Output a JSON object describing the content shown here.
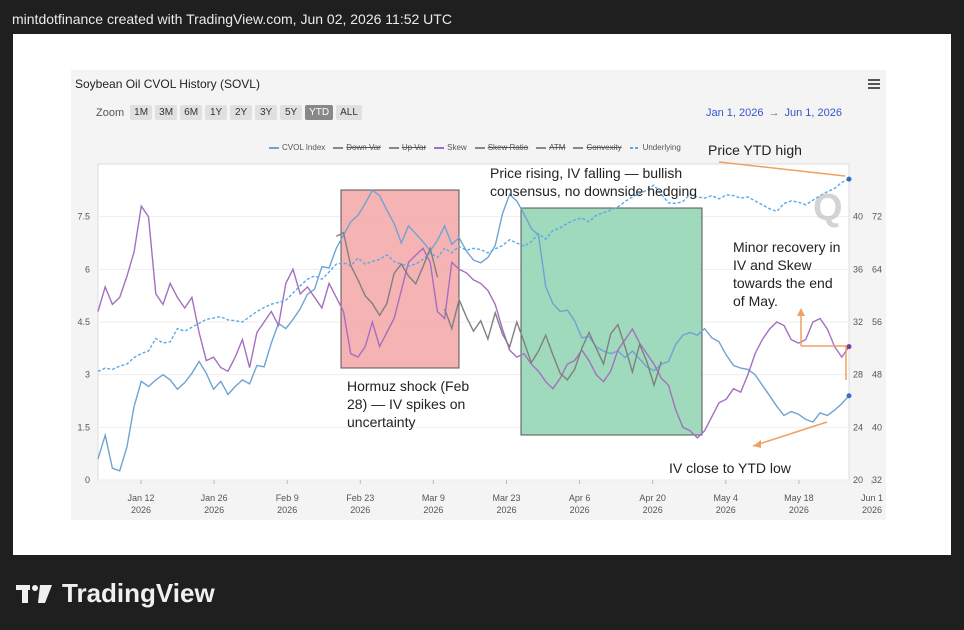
{
  "caption": "mintdotfinance created with TradingView.com, Jun 02, 2026 11:52 UTC",
  "logo_text": "TradingView",
  "chart_data": {
    "type": "line",
    "title": "Soybean Oil CVOL History (SOVL)",
    "zoom_label": "Zoom",
    "zoom_buttons": [
      "1M",
      "3M",
      "6M",
      "1Y",
      "2Y",
      "3Y",
      "5Y",
      "YTD",
      "ALL"
    ],
    "zoom_active": "YTD",
    "date_range": {
      "from": "Jan 1, 2026",
      "arrow": "→",
      "to": "Jun 1, 2026"
    },
    "legend": [
      {
        "label": "CVOL Index",
        "color": "#6fa3d4",
        "style": "solid"
      },
      {
        "label": "Down Var",
        "color": "#888888",
        "style": "strike"
      },
      {
        "label": "Up Var",
        "color": "#888888",
        "style": "strike"
      },
      {
        "label": "Skew",
        "color": "#a56fbf",
        "style": "solid"
      },
      {
        "label": "Skew Ratio",
        "color": "#888888",
        "style": "strike"
      },
      {
        "label": "ATM",
        "color": "#888888",
        "style": "strike"
      },
      {
        "label": "Convexity",
        "color": "#888888",
        "style": "strike"
      },
      {
        "label": "Underlying",
        "color": "#5aa9e6",
        "style": "dashed"
      }
    ],
    "x_ticks": [
      {
        "day": "Jan 12",
        "year": "2026"
      },
      {
        "day": "Jan 26",
        "year": "2026"
      },
      {
        "day": "Feb 9",
        "year": "2026"
      },
      {
        "day": "Feb 23",
        "year": "2026"
      },
      {
        "day": "Mar 9",
        "year": "2026"
      },
      {
        "day": "Mar 23",
        "year": "2026"
      },
      {
        "day": "Apr 6",
        "year": "2026"
      },
      {
        "day": "Apr 20",
        "year": "2026"
      },
      {
        "day": "May 4",
        "year": "2026"
      },
      {
        "day": "May 18",
        "year": "2026"
      },
      {
        "day": "Jun 1",
        "year": "2026"
      }
    ],
    "y_left_ticks": [
      "0",
      "1.5",
      "3",
      "4.5",
      "6",
      "7.5"
    ],
    "y_right1_ticks": [
      "20",
      "24",
      "28",
      "32",
      "36",
      "40"
    ],
    "y_right2_ticks": [
      "32",
      "40",
      "48",
      "56",
      "64",
      "72"
    ],
    "ylim_left": [
      0,
      9
    ],
    "ylim_cvol": [
      20,
      44
    ],
    "ylim_underlying": [
      32,
      80
    ],
    "series": [
      {
        "name": "CVOL Index",
        "color": "#6fa3d4",
        "axis": "cvol",
        "values": [
          21.6,
          23.4,
          20.9,
          20.7,
          22.5,
          25.6,
          27.5,
          27.1,
          27.6,
          28.0,
          27.6,
          26.9,
          27.4,
          28.1,
          29.0,
          28.1,
          26.9,
          27.5,
          26.5,
          27.1,
          27.6,
          27.3,
          28.7,
          28.6,
          30.4,
          31.9,
          31.5,
          32.2,
          33.0,
          34.1,
          34.5,
          36.2,
          36.1,
          37.6,
          38.6,
          39.6,
          40.1,
          41.0,
          42.0,
          41.6,
          40.5,
          39.5,
          38.0,
          39.3,
          38.7,
          38.1,
          37.4,
          38.2,
          39.3,
          37.9,
          38.4,
          37.4,
          36.7,
          36.5,
          36.9,
          37.8,
          40.2,
          41.7,
          41.2,
          40.2,
          39.1,
          38.6,
          34.7,
          33.4,
          32.8,
          32.9,
          32.1,
          30.8,
          30.9,
          30.1,
          29.8,
          29.6,
          29.8,
          29.3,
          29.8,
          29.2,
          28.6,
          28.3,
          28.8,
          29.0,
          30.3,
          31.0,
          31.2,
          31.0,
          31.5,
          30.8,
          30.5,
          29.5,
          28.7,
          28.5,
          28.4,
          28.0,
          27.2,
          26.4,
          25.6,
          24.9,
          25.2,
          25.0,
          24.6,
          24.4,
          25.1,
          24.9,
          25.3,
          25.8,
          26.4
        ]
      },
      {
        "name": "Skew",
        "color": "#a56fbf",
        "axis": "left",
        "values": [
          4.8,
          5.5,
          5.0,
          5.2,
          5.8,
          6.5,
          7.8,
          7.5,
          5.3,
          5.0,
          5.6,
          5.2,
          4.9,
          5.2,
          4.2,
          3.4,
          3.5,
          3.2,
          3.1,
          3.5,
          4.0,
          3.2,
          4.2,
          4.5,
          4.8,
          4.4,
          5.6,
          6.0,
          5.3,
          5.5,
          5.2,
          4.9,
          5.6,
          5.2,
          4.8,
          3.6,
          3.5,
          3.8,
          4.5,
          3.8,
          4.2,
          4.6,
          5.4,
          6.2,
          6.4,
          6.6,
          6.2,
          4.8,
          4.6,
          6.2,
          6.0,
          5.9,
          5.7,
          5.6,
          5.4,
          5.0,
          4.3,
          3.7,
          3.5,
          3.6,
          3.3,
          3.1,
          2.8,
          2.6,
          2.9,
          3.3,
          3.4,
          3.7,
          3.4,
          3.0,
          2.8,
          3.1,
          3.7,
          4.0,
          4.3,
          3.9,
          3.6,
          3.3,
          2.9,
          2.7,
          2.0,
          1.5,
          1.4,
          1.2,
          1.4,
          1.8,
          2.2,
          2.3,
          2.6,
          2.5,
          3.0,
          3.6,
          4.0,
          4.3,
          4.5,
          4.4,
          4.0,
          3.9,
          4.0,
          4.5,
          4.6,
          4.3,
          3.8,
          3.5,
          3.8
        ]
      },
      {
        "name": "Underlying",
        "color": "#5aa9e6",
        "axis": "underlying",
        "style": "dashed",
        "values": [
          48.5,
          49.0,
          48.8,
          49.3,
          49.6,
          50.6,
          51.2,
          51.6,
          53.5,
          52.8,
          53.0,
          55.0,
          54.6,
          55.2,
          55.8,
          56.4,
          56.6,
          56.8,
          56.3,
          56.2,
          56.0,
          56.8,
          57.6,
          58.2,
          58.7,
          59.0,
          59.3,
          60.4,
          61.5,
          62.5,
          63.0,
          62.5,
          63.6,
          64.8,
          65.0,
          64.5,
          65.7,
          64.8,
          65.2,
          65.5,
          66.2,
          65.2,
          64.8,
          64.5,
          64.8,
          65.5,
          66.5,
          65.8,
          67.2,
          66.5,
          67.5,
          66.9,
          67.2,
          67.0,
          66.5,
          67.1,
          67.6,
          68.5,
          68.0,
          67.5,
          68.2,
          69.4,
          68.6,
          69.9,
          70.3,
          71.0,
          71.5,
          71.8,
          71.2,
          72.2,
          72.6,
          73.0,
          73.5,
          74.3,
          75.0,
          75.5,
          76.0,
          76.8,
          75.4,
          74.1,
          74.0,
          74.3,
          75.4,
          75.0,
          74.8,
          75.2,
          74.7,
          75.3,
          75.2,
          74.8,
          75.0,
          74.4,
          73.8,
          73.2,
          72.8,
          74.0,
          74.4,
          74.2,
          73.8,
          74.5,
          75.2,
          75.8,
          76.3,
          77.2,
          77.7
        ]
      },
      {
        "name": "ATM",
        "color": "#808080",
        "axis": "cvol",
        "segment": [
          48,
          78
        ],
        "values": [
          33.0,
          31.5,
          33.7,
          32.4,
          31.3,
          32.1,
          30.7,
          32.7,
          31.1,
          30.1,
          32.0,
          30.5,
          28.9,
          29.8,
          31.0,
          29.5,
          28.1,
          27.6,
          28.4,
          30.0,
          31.2,
          30.0,
          28.8,
          31.1,
          31.8,
          30.1,
          28.2,
          30.3,
          29.0,
          27.2,
          29.0
        ]
      },
      {
        "name": "Hormuz ATM",
        "color": "#808080",
        "axis": "cvol",
        "segment": [
          33,
          47
        ],
        "values": [
          38.5,
          38.8,
          36.3,
          35.2,
          34.0,
          33.4,
          32.5,
          33.4,
          35.7,
          36.4,
          35.5,
          34.9,
          36.2,
          37.6,
          35.4
        ]
      }
    ],
    "annotations": [
      {
        "type": "box",
        "color": "#f4a6a6",
        "label": "Hormuz shock (Feb 28) — IV spikes on uncertainty"
      },
      {
        "type": "box",
        "color": "#8ed3b0",
        "label": "Price rising, IV falling — bullish consensus, no downside hedging"
      },
      {
        "type": "text",
        "label": "Price YTD high"
      },
      {
        "type": "text",
        "label": "Minor recovery in IV and Skew towards the end of May."
      },
      {
        "type": "text",
        "label": "IV close to YTD low"
      }
    ]
  }
}
